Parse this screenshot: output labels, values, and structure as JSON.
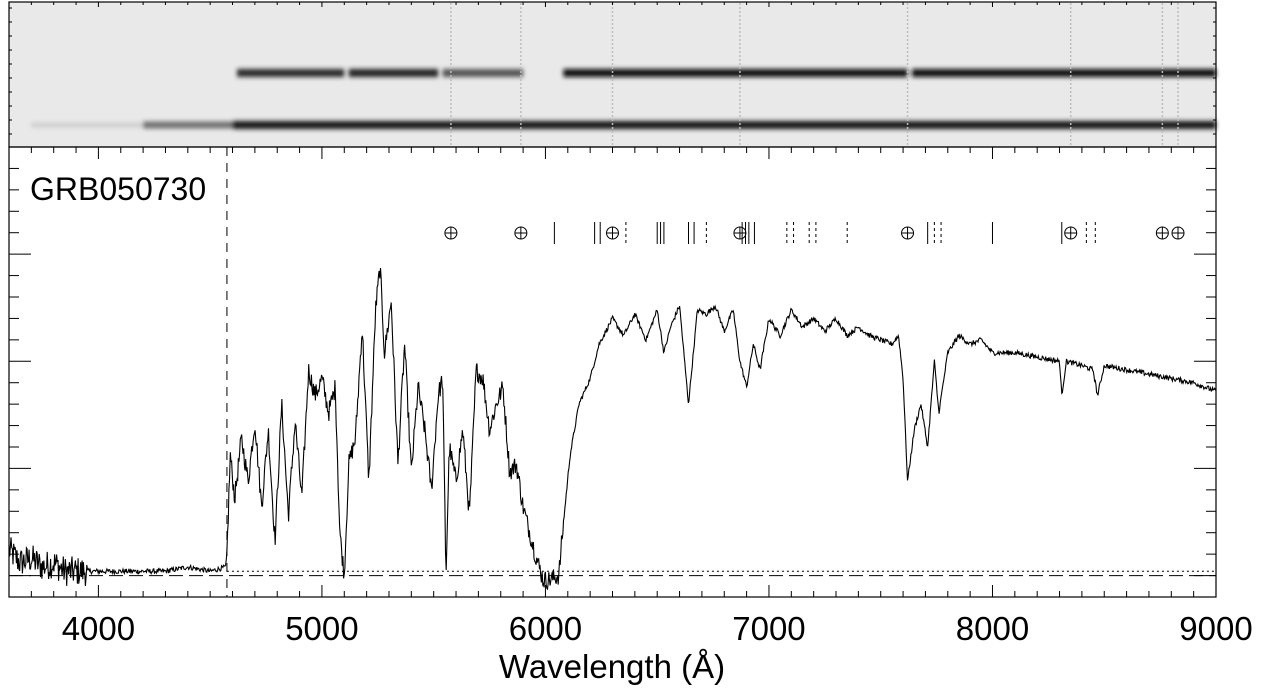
{
  "chart_data": {
    "type": "line",
    "title": "",
    "object_label": "GRB050730",
    "xlabel": "Wavelength (Å)",
    "ylabel": "",
    "xlim": [
      3600,
      9000
    ],
    "ylim": [
      -0.05,
      1.0
    ],
    "x_ticks": [
      4000,
      5000,
      6000,
      7000,
      8000,
      9000
    ],
    "x_tick_labels": [
      "4000",
      "5000",
      "6000",
      "7000",
      "8000",
      "9000"
    ],
    "lyman_limit_marker": 4575,
    "zero_level": 0.0,
    "error_level": 0.01,
    "telluric_markers": [
      5577,
      5890,
      6300,
      6870,
      7620,
      8350,
      8760,
      8830
    ],
    "absorption_markers_solid": [
      6040,
      6220,
      6245,
      6500,
      6515,
      6530,
      6640,
      6665,
      6880,
      6895,
      6910,
      6935,
      7710,
      8000,
      8310
    ],
    "absorption_markers_dashed": [
      6360,
      6720,
      7080,
      7110,
      7180,
      7210,
      7350,
      7740,
      7770,
      8420,
      8460
    ],
    "series": [
      {
        "name": "",
        "x": [
          3600,
          3650,
          3700,
          3750,
          3800,
          3850,
          3900,
          4000,
          4100,
          4200,
          4300,
          4400,
          4500,
          4570,
          4575,
          4590,
          4610,
          4640,
          4670,
          4700,
          4730,
          4760,
          4790,
          4820,
          4850,
          4880,
          4910,
          4940,
          4970,
          5000,
          5030,
          5060,
          5080,
          5100,
          5120,
          5150,
          5180,
          5210,
          5240,
          5260,
          5280,
          5310,
          5340,
          5370,
          5400,
          5430,
          5460,
          5490,
          5520,
          5540,
          5555,
          5570,
          5600,
          5630,
          5660,
          5690,
          5720,
          5750,
          5780,
          5810,
          5840,
          5870,
          5900,
          5930,
          5960,
          5990,
          6020,
          6060,
          6080,
          6110,
          6150,
          6200,
          6240,
          6300,
          6350,
          6400,
          6450,
          6500,
          6530,
          6560,
          6600,
          6640,
          6680,
          6720,
          6760,
          6800,
          6840,
          6870,
          6900,
          6930,
          6960,
          7000,
          7050,
          7100,
          7150,
          7200,
          7250,
          7300,
          7350,
          7400,
          7450,
          7500,
          7550,
          7580,
          7600,
          7620,
          7650,
          7680,
          7710,
          7740,
          7760,
          7800,
          7850,
          7900,
          7950,
          8000,
          8100,
          8200,
          8300,
          8310,
          8330,
          8400,
          8450,
          8470,
          8500,
          8600,
          8700,
          8800,
          8900,
          8950,
          9000
        ],
        "y": [
          0.06,
          0.03,
          0.04,
          0.02,
          0.03,
          0.01,
          0.01,
          0.01,
          0.01,
          0.01,
          0.01,
          0.02,
          0.01,
          0.02,
          0.05,
          0.28,
          0.18,
          0.32,
          0.22,
          0.36,
          0.16,
          0.34,
          0.08,
          0.4,
          0.14,
          0.36,
          0.18,
          0.48,
          0.42,
          0.46,
          0.38,
          0.44,
          0.1,
          0.0,
          0.26,
          0.32,
          0.58,
          0.22,
          0.62,
          0.72,
          0.52,
          0.64,
          0.26,
          0.54,
          0.24,
          0.44,
          0.34,
          0.2,
          0.42,
          0.46,
          0.0,
          0.3,
          0.22,
          0.34,
          0.14,
          0.48,
          0.46,
          0.34,
          0.4,
          0.44,
          0.24,
          0.26,
          0.16,
          0.1,
          0.04,
          -0.01,
          -0.01,
          0.0,
          0.12,
          0.28,
          0.4,
          0.46,
          0.54,
          0.6,
          0.56,
          0.61,
          0.55,
          0.62,
          0.52,
          0.58,
          0.63,
          0.4,
          0.62,
          0.61,
          0.63,
          0.57,
          0.62,
          0.5,
          0.44,
          0.54,
          0.48,
          0.6,
          0.56,
          0.62,
          0.58,
          0.6,
          0.57,
          0.6,
          0.56,
          0.58,
          0.56,
          0.55,
          0.54,
          0.56,
          0.46,
          0.22,
          0.34,
          0.4,
          0.3,
          0.5,
          0.38,
          0.52,
          0.56,
          0.54,
          0.55,
          0.52,
          0.52,
          0.51,
          0.5,
          0.42,
          0.5,
          0.49,
          0.48,
          0.42,
          0.49,
          0.48,
          0.47,
          0.46,
          0.45,
          0.44,
          0.43
        ]
      }
    ]
  }
}
